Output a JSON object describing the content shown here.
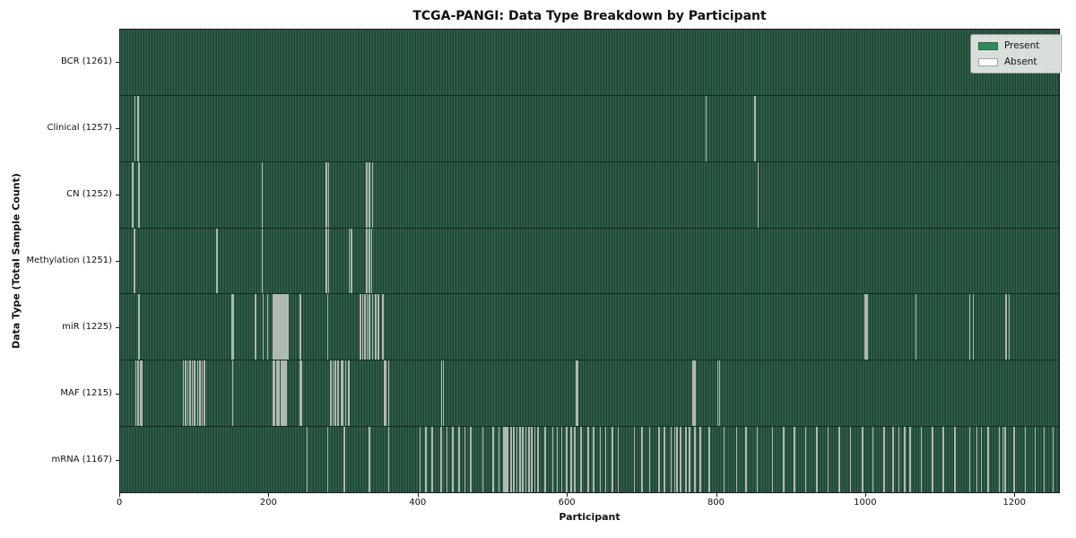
{
  "chart_data": {
    "type": "heatmap",
    "title": "TCGA-PANGI: Data Type Breakdown by Participant",
    "xlabel": "Participant",
    "ylabel": "Data Type (Total Sample Count)",
    "x_range": [
      0,
      1261
    ],
    "x_ticks": [
      0,
      200,
      400,
      600,
      800,
      1000,
      1200
    ],
    "grid": false,
    "legend_position": "upper right",
    "legend_items": [
      {
        "label": "Present",
        "color": "#2e8b57"
      },
      {
        "label": "Absent",
        "color": "#ffffff"
      }
    ],
    "colors": {
      "present_fill": "#2e8b57",
      "present_stripe_light": "#31624a",
      "present_stripe_dark": "#204435",
      "absent_line": "#b2b9b1",
      "row_divider": "#132b20",
      "spine": "#1a1a1a"
    },
    "rows": [
      {
        "data_type": "BCR",
        "label": "BCR (1261)",
        "present_count": 1261,
        "absent_participants": []
      },
      {
        "data_type": "Clinical",
        "label": "Clinical (1257)",
        "present_count": 1257,
        "absent_participants": [
          19,
          23,
          786,
          852
        ]
      },
      {
        "data_type": "CN",
        "label": "CN (1252)",
        "present_count": 1252,
        "absent_participants": [
          16,
          24,
          190,
          276,
          279,
          330,
          334,
          338,
          856
        ]
      },
      {
        "data_type": "Methylation",
        "label": "Methylation (1251)",
        "present_count": 1251,
        "absent_participants": [
          18,
          129,
          190,
          276,
          279,
          307,
          310,
          330,
          334,
          337
        ]
      },
      {
        "data_type": "miR",
        "label": "miR (1225)",
        "present_count": 1225,
        "absent_participants": [
          24,
          149,
          151,
          181,
          191,
          197,
          205,
          206,
          208,
          210,
          212,
          214,
          216,
          218,
          220,
          221,
          223,
          225,
          241,
          278,
          322,
          325,
          328,
          331,
          334,
          338,
          342,
          346,
          352,
          1000,
          1002,
          1068,
          1140,
          1145,
          1189,
          1193
        ]
      },
      {
        "data_type": "MAF",
        "label": "MAF (1215)",
        "present_count": 1215,
        "absent_participants": [
          20,
          23,
          26,
          28,
          84,
          87,
          90,
          93,
          96,
          99,
          103,
          106,
          109,
          112,
          150,
          205,
          207,
          209,
          211,
          213,
          215,
          217,
          219,
          221,
          222,
          241,
          243,
          282,
          285,
          288,
          292,
          296,
          298,
          302,
          306,
          354,
          356,
          360,
          431,
          433,
          612,
          614,
          769,
          771,
          802,
          804
        ]
      },
      {
        "data_type": "mRNA",
        "label": "mRNA (1167)",
        "present_count": 1167,
        "absent_participants": [
          250,
          278,
          300,
          334,
          360,
          402,
          410,
          418,
          430,
          438,
          446,
          454,
          462,
          470,
          486,
          500,
          508,
          514,
          516,
          518,
          520,
          524,
          528,
          532,
          536,
          540,
          544,
          548,
          552,
          556,
          560,
          570,
          580,
          586,
          592,
          599,
          605,
          610,
          618,
          628,
          635,
          644,
          651,
          660,
          668,
          690,
          700,
          710,
          723,
          730,
          739,
          744,
          747,
          752,
          759,
          764,
          771,
          778,
          790,
          810,
          827,
          840,
          855,
          875,
          890,
          905,
          920,
          935,
          950,
          965,
          980,
          996,
          1010,
          1025,
          1037,
          1045,
          1053,
          1060,
          1075,
          1090,
          1105,
          1120,
          1140,
          1150,
          1156,
          1165,
          1180,
          1185,
          1188,
          1200,
          1215,
          1228,
          1240,
          1252
        ]
      }
    ]
  }
}
